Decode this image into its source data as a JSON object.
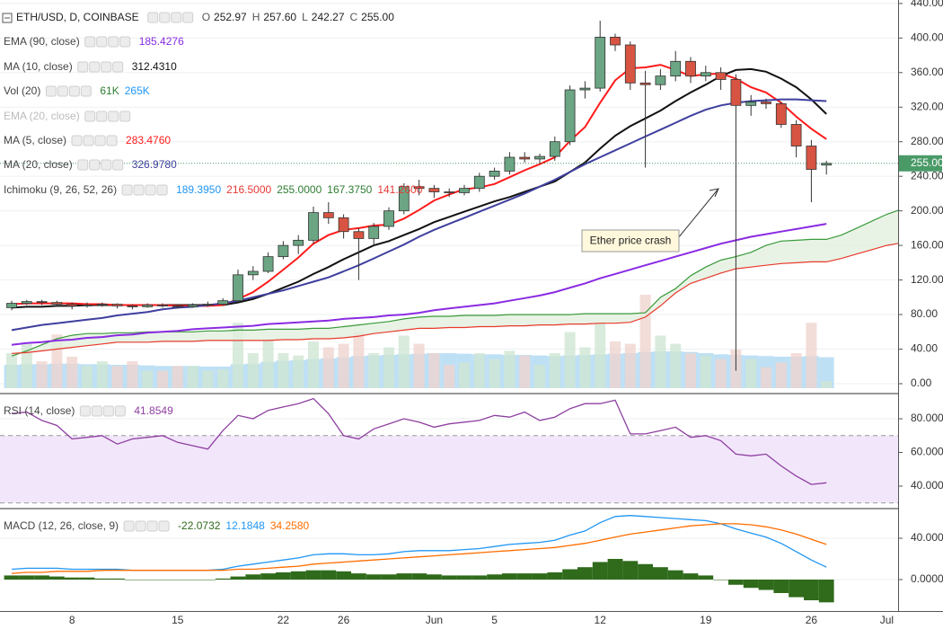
{
  "chart_data": [
    {
      "type": "candlestick",
      "title": "ETH/USD, D, COINBASE",
      "quote": [
        {
          "label": "O",
          "value": "252.97"
        },
        {
          "label": "H",
          "value": "257.60"
        },
        {
          "label": "L",
          "value": "242.27"
        },
        {
          "label": "C",
          "value": "255.00"
        }
      ],
      "open": [
        88,
        93,
        95,
        94,
        92,
        90,
        91,
        92,
        90,
        89,
        91,
        90,
        89,
        91,
        92,
        96,
        126,
        130,
        147,
        160,
        166,
        198,
        192,
        176,
        168,
        182,
        200,
        228,
        226,
        222,
        221,
        226,
        240,
        246,
        262,
        260,
        263,
        280,
        340,
        342,
        401,
        392,
        348,
        346,
        356,
        373,
        356,
        360,
        352,
        322,
        326,
        324,
        300,
        275,
        253,
        null,
        null,
        null,
        null,
        null
      ],
      "high": [
        96,
        97,
        97,
        96,
        94,
        94,
        94,
        93,
        92,
        93,
        93,
        92,
        93,
        95,
        99,
        132,
        136,
        152,
        165,
        172,
        205,
        210,
        196,
        180,
        186,
        204,
        232,
        236,
        230,
        226,
        230,
        244,
        250,
        268,
        268,
        266,
        286,
        345,
        350,
        420,
        405,
        396,
        362,
        364,
        385,
        378,
        368,
        366,
        358,
        334,
        330,
        326,
        305,
        282,
        258,
        null,
        null,
        null,
        null,
        null
      ],
      "low": [
        85,
        91,
        91,
        89,
        86,
        88,
        89,
        87,
        86,
        88,
        88,
        87,
        88,
        89,
        90,
        95,
        120,
        128,
        144,
        150,
        162,
        185,
        168,
        120,
        160,
        178,
        196,
        218,
        215,
        216,
        218,
        222,
        236,
        242,
        256,
        255,
        258,
        276,
        330,
        338,
        385,
        340,
        250,
        340,
        350,
        348,
        350,
        340,
        15,
        310,
        318,
        296,
        262,
        210,
        242,
        null,
        null,
        null,
        null,
        null
      ],
      "close": [
        93,
        95,
        94,
        92,
        90,
        91,
        92,
        90,
        89,
        91,
        90,
        89,
        91,
        92,
        96,
        126,
        130,
        147,
        160,
        166,
        198,
        192,
        176,
        168,
        182,
        200,
        228,
        226,
        222,
        221,
        226,
        240,
        246,
        262,
        260,
        263,
        280,
        340,
        342,
        401,
        392,
        348,
        346,
        356,
        373,
        356,
        360,
        352,
        322,
        326,
        324,
        300,
        275,
        248,
        255,
        null,
        null,
        null,
        null,
        null
      ],
      "up_color": "#6ba583",
      "down_color": "#d75442",
      "series": [
        {
          "name": "EMA (90, close)",
          "legend_value": "185.4276",
          "color": "#8a2be2",
          "visible": true,
          "values": [
            45,
            47,
            48,
            50,
            51,
            53,
            54,
            56,
            57,
            59,
            60,
            61,
            63,
            64,
            65,
            66,
            67,
            69,
            70,
            71,
            72,
            73,
            75,
            76,
            77,
            79,
            80,
            82,
            85,
            87,
            89,
            91,
            93,
            96,
            99,
            102,
            106,
            111,
            116,
            122,
            127,
            132,
            137,
            142,
            147,
            152,
            157,
            162,
            166,
            170,
            173,
            176,
            179,
            182,
            185,
            null,
            null,
            null,
            null,
            null
          ]
        },
        {
          "name": "MA (10, close)",
          "legend_value": "312.4310",
          "color": "#111111",
          "visible": true,
          "values": [
            88,
            89,
            89,
            90,
            90,
            91,
            91,
            91,
            91,
            91,
            91,
            91,
            91,
            91,
            91,
            94,
            98,
            104,
            111,
            118,
            127,
            135,
            144,
            152,
            160,
            165,
            172,
            179,
            187,
            193,
            199,
            205,
            211,
            216,
            222,
            228,
            234,
            245,
            256,
            272,
            287,
            298,
            307,
            316,
            327,
            337,
            346,
            356,
            363,
            364,
            361,
            353,
            343,
            329,
            312,
            null,
            null,
            null,
            null,
            null
          ]
        },
        {
          "name": "EMA (20, close)",
          "visible": false
        },
        {
          "name": "MA (5, close)",
          "legend_value": "283.4760",
          "color": "#ff1a1a",
          "visible": true,
          "values": [
            92,
            93,
            93,
            93,
            93,
            92,
            92,
            91,
            91,
            91,
            91,
            90,
            90,
            90,
            91,
            98,
            106,
            118,
            132,
            146,
            162,
            172,
            178,
            180,
            183,
            184,
            191,
            201,
            212,
            219,
            225,
            227,
            231,
            239,
            247,
            254,
            262,
            281,
            297,
            325,
            351,
            365,
            366,
            369,
            363,
            356,
            358,
            359,
            353,
            343,
            337,
            325,
            309,
            295,
            283,
            null,
            null,
            null,
            null,
            null
          ]
        },
        {
          "name": "MA (20, close)",
          "legend_value": "326.9780",
          "color": "#3f3f9f",
          "visible": true,
          "values": [
            62,
            65,
            68,
            70,
            72,
            74,
            76,
            79,
            81,
            83,
            86,
            88,
            89,
            91,
            93,
            96,
            100,
            104,
            108,
            113,
            118,
            123,
            130,
            137,
            145,
            153,
            161,
            170,
            178,
            185,
            192,
            199,
            206,
            213,
            220,
            228,
            236,
            245,
            254,
            262,
            270,
            278,
            286,
            294,
            302,
            310,
            317,
            322,
            325,
            327,
            328,
            329,
            329,
            328,
            327,
            null,
            null,
            null,
            null,
            null
          ]
        }
      ],
      "volume": {
        "name": "Vol (20)",
        "legend_values": [
          "61K",
          "265K"
        ],
        "legend_colors": [
          "#2e7d32",
          "#2196f3"
        ],
        "up_color": "#cfe6d3",
        "down_color": "#efd4d0",
        "ma_color": "#a8d5f2",
        "values": [
          300,
          380,
          230,
          460,
          270,
          190,
          230,
          190,
          230,
          150,
          150,
          190,
          190,
          150,
          160,
          560,
          300,
          420,
          300,
          280,
          400,
          350,
          380,
          480,
          300,
          350,
          450,
          380,
          300,
          200,
          220,
          300,
          250,
          320,
          280,
          200,
          300,
          480,
          350,
          560,
          400,
          380,
          800,
          450,
          380,
          300,
          280,
          250,
          330,
          250,
          180,
          220,
          300,
          560,
          61,
          null,
          null,
          null,
          null,
          null
        ],
        "ma": [
          200,
          205,
          205,
          210,
          210,
          205,
          205,
          200,
          200,
          195,
          190,
          190,
          190,
          185,
          185,
          205,
          210,
          225,
          235,
          240,
          250,
          255,
          265,
          275,
          280,
          285,
          290,
          295,
          300,
          300,
          295,
          290,
          290,
          285,
          285,
          280,
          275,
          280,
          285,
          290,
          295,
          300,
          310,
          315,
          315,
          310,
          300,
          290,
          285,
          280,
          275,
          270,
          270,
          275,
          265,
          null,
          null,
          null,
          null,
          null
        ]
      },
      "ichimoku": {
        "name": "Ichimoku (9, 26, 52, 26)",
        "legend_values": [
          "189.3950",
          "216.5000",
          "255.0000",
          "167.3750",
          "141.2600"
        ],
        "legend_colors": [
          "#2196f3",
          "#e53935",
          "#2e7d32",
          "#2e7d32",
          "#e53935"
        ],
        "span_a_color": "#3a9a3a",
        "span_b_color": "#e8392b",
        "cloud_color": "#e2f0de",
        "span_a": [
          32,
          38,
          45,
          52,
          56,
          58,
          58,
          59,
          59,
          60,
          60,
          60,
          60,
          61,
          61,
          62,
          62,
          63,
          63,
          63,
          64,
          64,
          66,
          68,
          70,
          72,
          75,
          77,
          78,
          78,
          79,
          79,
          79,
          80,
          80,
          80,
          80,
          80,
          81,
          81,
          81,
          81,
          82,
          100,
          110,
          125,
          135,
          143,
          147,
          152,
          160,
          165,
          166,
          167,
          167,
          172,
          180,
          188,
          196,
          202
        ],
        "span_b": [
          35,
          36,
          38,
          40,
          42,
          44,
          46,
          48,
          48,
          48,
          49,
          49,
          49,
          50,
          50,
          50,
          50,
          50,
          51,
          51,
          52,
          52,
          53,
          55,
          58,
          60,
          62,
          64,
          64,
          65,
          65,
          66,
          66,
          67,
          67,
          68,
          68,
          69,
          69,
          70,
          70,
          71,
          77,
          90,
          105,
          116,
          122,
          128,
          133,
          135,
          137,
          139,
          140,
          141,
          141,
          145,
          150,
          155,
          160,
          163
        ]
      },
      "price_line": {
        "value": 255,
        "label": "255.00"
      },
      "price_line_color": "#4a9a68",
      "annotation": "Ether price crash",
      "ylim": [
        -10.4,
        444
      ],
      "yticks": [
        {
          "value": 0,
          "label": "0.00"
        },
        {
          "value": 40,
          "label": "40.00"
        },
        {
          "value": 80,
          "label": "80.00"
        },
        {
          "value": 120,
          "label": "120.00"
        },
        {
          "value": 160,
          "label": "160.00"
        },
        {
          "value": 200,
          "label": "200.00"
        },
        {
          "value": 240,
          "label": "240.00"
        },
        {
          "value": 280,
          "label": "280.00"
        },
        {
          "value": 320,
          "label": "320.00"
        },
        {
          "value": 360,
          "label": "360.00"
        },
        {
          "value": 400,
          "label": "400.00"
        },
        {
          "value": 440,
          "label": "440.00"
        }
      ],
      "grid": true
    },
    {
      "type": "line",
      "title": "RSI (14, close)",
      "legend_value": "41.8549",
      "color": "#8e3fa0",
      "values": [
        83,
        84,
        79,
        76,
        68,
        69,
        70,
        65,
        68,
        69,
        70,
        66,
        64,
        62,
        73,
        82,
        80,
        85,
        87,
        89,
        92,
        83,
        70,
        68,
        74,
        77,
        80,
        78,
        75,
        77,
        78,
        79,
        82,
        81,
        84,
        79,
        81,
        86,
        89,
        89,
        91,
        71,
        71,
        73,
        75,
        69,
        70,
        67,
        59,
        58,
        59,
        52,
        46,
        41,
        42,
        null,
        null,
        null,
        null,
        null
      ],
      "bands": [
        30,
        70
      ],
      "band_color": "#f2e6fb",
      "ylim": [
        27.2,
        93.9
      ],
      "yticks": [
        {
          "value": 40,
          "label": "40.0000"
        },
        {
          "value": 60,
          "label": "60.0000"
        },
        {
          "value": 80,
          "label": "80.0000"
        }
      ],
      "grid": true
    },
    {
      "type": "macd",
      "title": "MACD (12, 26, close, 9)",
      "categories": [
        null,
        null,
        null,
        null,
        "8",
        null,
        null,
        null,
        null,
        null,
        null,
        "15",
        null,
        null,
        null,
        null,
        null,
        null,
        "22",
        null,
        null,
        null,
        "26",
        null,
        null,
        null,
        null,
        null,
        "Jun",
        null,
        null,
        null,
        "5",
        null,
        null,
        null,
        null,
        null,
        null,
        "12",
        null,
        null,
        null,
        null,
        null,
        null,
        "19",
        null,
        null,
        null,
        null,
        null,
        null,
        "26",
        null,
        null,
        null,
        null,
        "Jul",
        null
      ],
      "series": [
        {
          "name": "Histogram",
          "legend_value": "-22.0732",
          "color": "#2f6b1b",
          "values": [
            4,
            4,
            4,
            3,
            2,
            2,
            1,
            1,
            0,
            0,
            0,
            0,
            0,
            0,
            1,
            3,
            5,
            6,
            7,
            8,
            9,
            9,
            8,
            6,
            5,
            5,
            6,
            6,
            5,
            4,
            4,
            4,
            5,
            6,
            6,
            6,
            7,
            10,
            12,
            17,
            20,
            18,
            15,
            12,
            9,
            6,
            4,
            0,
            -5,
            -8,
            -10,
            -13,
            -17,
            -20,
            -22,
            null,
            null,
            null,
            null,
            null
          ]
        },
        {
          "name": "MACD",
          "legend_value": "12.1848",
          "color": "#2196f3",
          "values": [
            10,
            11,
            11,
            11,
            10,
            10,
            10,
            10,
            9,
            9,
            9,
            9,
            9,
            9,
            10,
            13,
            15,
            17,
            19,
            21,
            24,
            25,
            25,
            24,
            24,
            25,
            27,
            28,
            28,
            28,
            29,
            30,
            32,
            34,
            35,
            36,
            38,
            43,
            47,
            55,
            61,
            62,
            61,
            60,
            59,
            58,
            57,
            54,
            49,
            45,
            41,
            35,
            27,
            19,
            12,
            null,
            null,
            null,
            null,
            null
          ]
        },
        {
          "name": "Signal",
          "legend_value": "34.2580",
          "color": "#ff6d00",
          "values": [
            6,
            7,
            7,
            8,
            8,
            8,
            9,
            9,
            9,
            9,
            9,
            9,
            9,
            9,
            9,
            10,
            10,
            11,
            12,
            13,
            15,
            16,
            17,
            18,
            19,
            20,
            21,
            22,
            23,
            24,
            25,
            26,
            27,
            28,
            29,
            30,
            31,
            33,
            35,
            38,
            41,
            44,
            46,
            48,
            50,
            52,
            53,
            54,
            54,
            53,
            51,
            48,
            44,
            39,
            34,
            null,
            null,
            null,
            null,
            null
          ]
        }
      ],
      "ylim": [
        -30.4,
        67.8
      ],
      "yticks": [
        {
          "value": 0,
          "label": "0.0000"
        },
        {
          "value": 40,
          "label": "40.0000"
        }
      ],
      "grid": true
    }
  ]
}
